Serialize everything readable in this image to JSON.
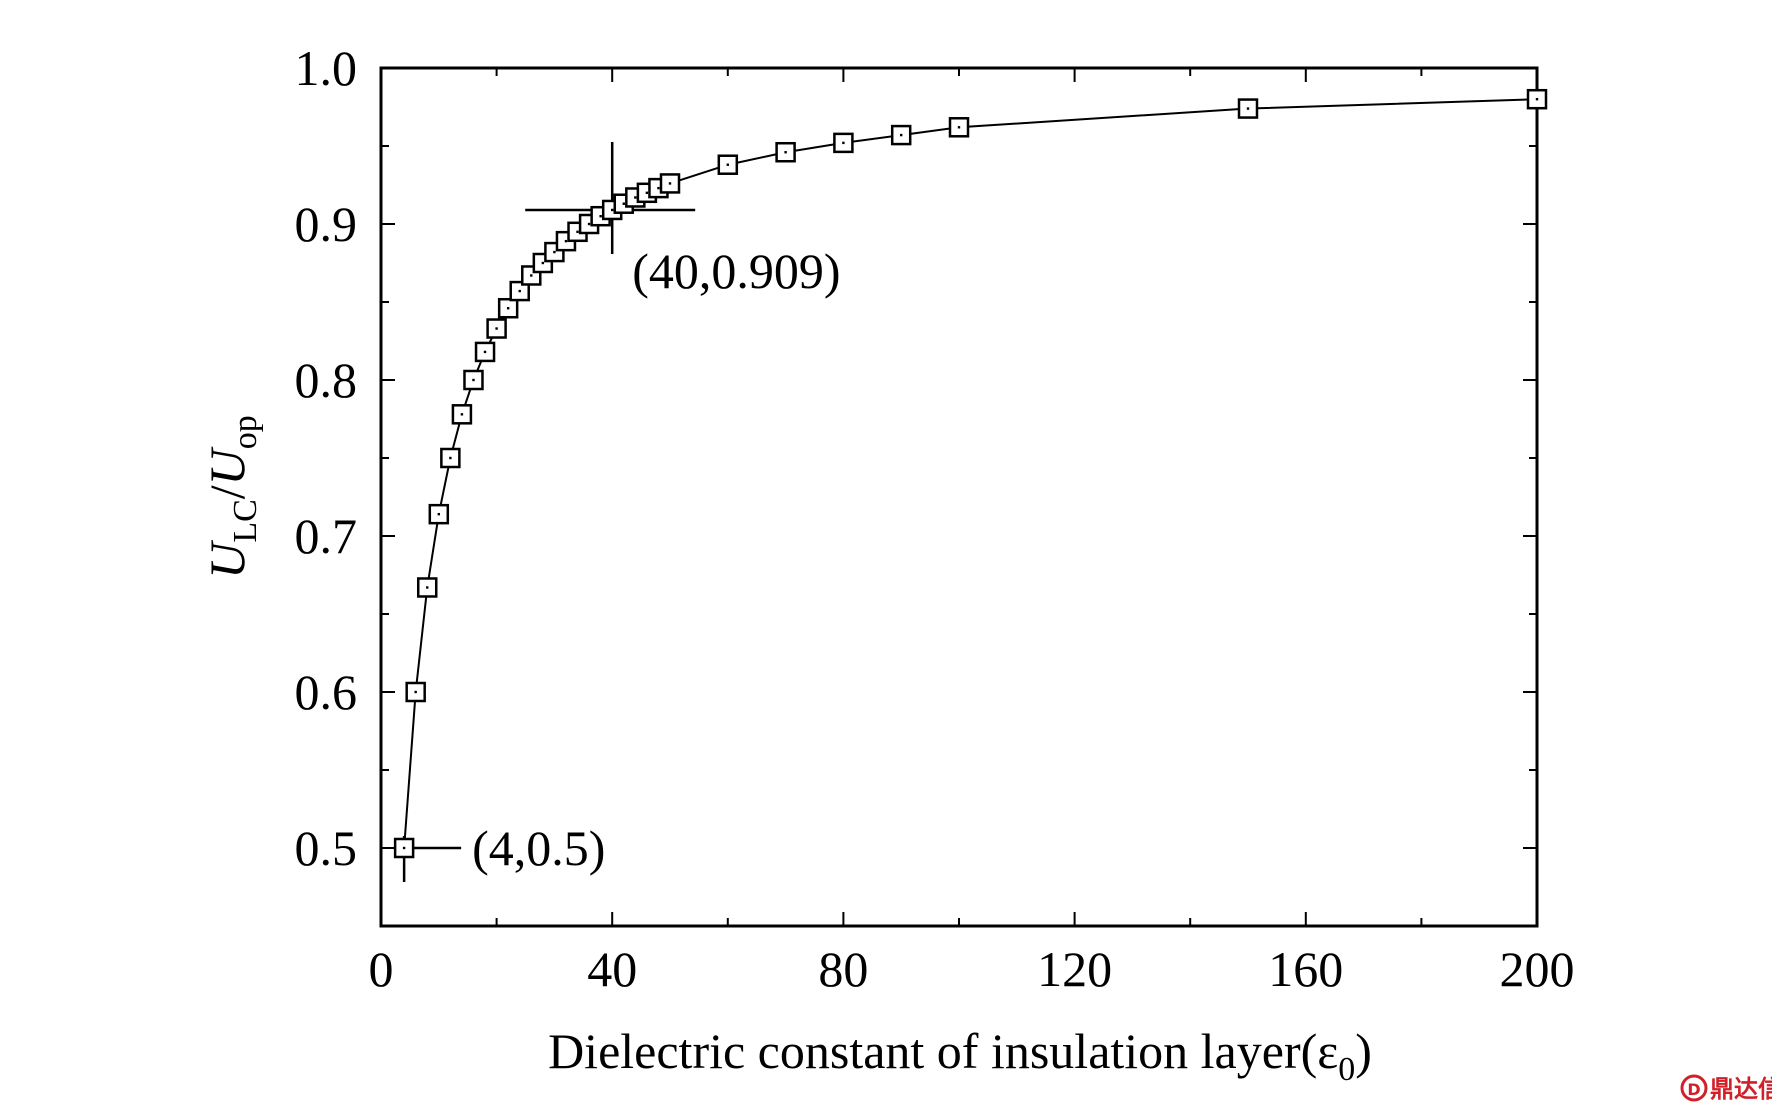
{
  "chart_data": {
    "type": "line",
    "title": "",
    "xlabel": "Dielectric constant of insulation layer(ε",
    "xlabel_subscript": "0",
    "xlabel_suffix": ")",
    "ylabel": {
      "u1": "U",
      "sub1": "LC",
      "sep": "/",
      "u2": "U",
      "sub2": "op"
    },
    "xlim": [
      0,
      200
    ],
    "ylim": [
      0.45,
      1.0
    ],
    "x_ticks": [
      0,
      40,
      80,
      120,
      160,
      200
    ],
    "y_ticks": [
      0.5,
      0.6,
      0.7,
      0.8,
      0.9,
      1.0
    ],
    "y_tick_labels": [
      "0.5",
      "0.6",
      "0.7",
      "0.8",
      "0.9",
      "1.0"
    ],
    "x_tick_labels": [
      "0",
      "40",
      "80",
      "120",
      "160",
      "200"
    ],
    "grid": false,
    "marker": "open-square",
    "color": "#000000",
    "series": [
      {
        "x": [
          4,
          6,
          8,
          10,
          12,
          14,
          16,
          18,
          20,
          22,
          24,
          26,
          28,
          30,
          32,
          34,
          36,
          38,
          40,
          42,
          44,
          46,
          48,
          50,
          60,
          70,
          80,
          90,
          100,
          150,
          200
        ],
        "y": [
          0.5,
          0.6,
          0.667,
          0.714,
          0.75,
          0.778,
          0.8,
          0.818,
          0.833,
          0.846,
          0.857,
          0.867,
          0.875,
          0.882,
          0.889,
          0.895,
          0.9,
          0.905,
          0.909,
          0.913,
          0.917,
          0.92,
          0.923,
          0.926,
          0.938,
          0.946,
          0.952,
          0.957,
          0.962,
          0.974,
          0.98
        ]
      }
    ],
    "annotations": [
      {
        "x": 40,
        "y": 0.909,
        "text": "(40,0.909)"
      },
      {
        "x": 4,
        "y": 0.5,
        "text": "(4,0.5)"
      }
    ]
  },
  "watermark": {
    "logo_glyph": "D",
    "text": "鼎达信"
  }
}
